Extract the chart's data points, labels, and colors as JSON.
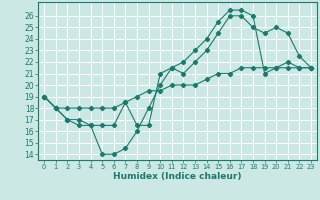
{
  "xlabel": "Humidex (Indice chaleur)",
  "bg_color": "#cce8e5",
  "grid_color": "#ffffff",
  "line_color": "#1a7a6e",
  "xlim": [
    -0.5,
    23.5
  ],
  "ylim": [
    13.5,
    27.2
  ],
  "xticks": [
    0,
    1,
    2,
    3,
    4,
    5,
    6,
    7,
    8,
    9,
    10,
    11,
    12,
    13,
    14,
    15,
    16,
    17,
    18,
    19,
    20,
    21,
    22,
    23
  ],
  "yticks": [
    14,
    15,
    16,
    17,
    18,
    19,
    20,
    21,
    22,
    23,
    24,
    25,
    26
  ],
  "line1_x": [
    0,
    1,
    2,
    3,
    4,
    5,
    6,
    7,
    8,
    9,
    10,
    11,
    12,
    13,
    14,
    15,
    16,
    17,
    18,
    19,
    20,
    21,
    22,
    23
  ],
  "line1_y": [
    19,
    18,
    17,
    17,
    16.5,
    16.5,
    16.5,
    18.5,
    16.5,
    16.5,
    21,
    21.5,
    22,
    23,
    24,
    25.5,
    26.5,
    26.5,
    26,
    21,
    21.5,
    22,
    21.5,
    21.5
  ],
  "line2_x": [
    0,
    1,
    2,
    3,
    4,
    5,
    6,
    7,
    8,
    9,
    10,
    11,
    12,
    13,
    14,
    15,
    16,
    17,
    18,
    19,
    20,
    21,
    22,
    23
  ],
  "line2_y": [
    19,
    18,
    17,
    16.5,
    16.5,
    14,
    14,
    14.5,
    16,
    18,
    20,
    21.5,
    21,
    22,
    23,
    24.5,
    26,
    26,
    25,
    24.5,
    25,
    24.5,
    22.5,
    21.5
  ],
  "line3_x": [
    0,
    1,
    2,
    3,
    4,
    5,
    6,
    7,
    8,
    9,
    10,
    11,
    12,
    13,
    14,
    15,
    16,
    17,
    18,
    19,
    20,
    21,
    22,
    23
  ],
  "line3_y": [
    19,
    18,
    18,
    18,
    18,
    18,
    18,
    18.5,
    19,
    19.5,
    19.5,
    20,
    20,
    20,
    20.5,
    21,
    21,
    21.5,
    21.5,
    21.5,
    21.5,
    21.5,
    21.5,
    21.5
  ],
  "xtick_fontsize": 4.8,
  "ytick_fontsize": 5.5,
  "xlabel_fontsize": 6.5
}
